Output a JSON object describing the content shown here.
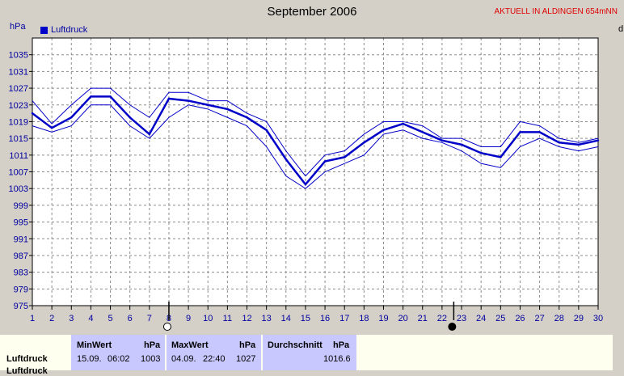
{
  "header": {
    "title": "September 2006",
    "badge": "AKTUELL IN ALDINGEN 654mNN",
    "unit_left": "hPa",
    "unit_right": "d"
  },
  "colors": {
    "plot_bg": "#ffffff",
    "line": "#0000c8",
    "frame_bg": "#d4d0c8",
    "table_header_bg": "#c8c8ff"
  },
  "chart_data": {
    "type": "line",
    "title": "September 2006",
    "ylabel": "hPa",
    "xlabel": "",
    "x": [
      1,
      2,
      3,
      4,
      5,
      6,
      7,
      8,
      9,
      10,
      11,
      12,
      13,
      14,
      15,
      16,
      17,
      18,
      19,
      20,
      21,
      22,
      23,
      24,
      25,
      26,
      27,
      28,
      29,
      30
    ],
    "ylim": [
      975,
      1039
    ],
    "yticks": [
      975,
      979,
      983,
      987,
      991,
      995,
      999,
      1003,
      1007,
      1011,
      1015,
      1019,
      1023,
      1027,
      1031,
      1035
    ],
    "grid": true,
    "legend": "top-left",
    "series": [
      {
        "name": "Luftdruck",
        "role": "mean",
        "values": [
          1021,
          1017.5,
          1020,
          1025,
          1025,
          1020,
          1016,
          1024.5,
          1024,
          1023,
          1022,
          1020,
          1017,
          1010,
          1004,
          1009.5,
          1010.5,
          1014,
          1017,
          1018.5,
          1016.5,
          1014.5,
          1013.5,
          1011.5,
          1010.5,
          1016.5,
          1016.5,
          1014,
          1013.5,
          1014.5
        ]
      },
      {
        "role": "max",
        "values": [
          1024,
          1018.5,
          1023,
          1027,
          1027,
          1023,
          1020,
          1026,
          1026,
          1024,
          1024,
          1021,
          1019,
          1012,
          1006,
          1011,
          1012,
          1016,
          1019,
          1019,
          1018,
          1015,
          1015,
          1013,
          1013,
          1019,
          1018,
          1015,
          1014,
          1015
        ]
      },
      {
        "role": "min",
        "values": [
          1018,
          1016.5,
          1018,
          1023,
          1023,
          1018,
          1015,
          1020,
          1023,
          1022,
          1020,
          1018,
          1013,
          1006,
          1003,
          1007,
          1009,
          1011,
          1016,
          1017,
          1015,
          1014,
          1012,
          1009,
          1008,
          1013,
          1015,
          1013,
          1012,
          1013
        ]
      }
    ],
    "markers": [
      {
        "day": 8,
        "symbol": "full-moon-icon"
      },
      {
        "day": 22.6,
        "symbol": "new-moon-icon"
      }
    ]
  },
  "table": {
    "row_label": "Luftdruck",
    "row_label_2": "Luftdruck",
    "min": {
      "header": "MinWert",
      "unit": "hPa",
      "date": "15.09.",
      "time": "06:02",
      "value": "1003"
    },
    "max": {
      "header": "MaxWert",
      "unit": "hPa",
      "date": "04.09.",
      "time": "22:40",
      "value": "1027"
    },
    "avg": {
      "header": "Durchschnitt",
      "unit": "hPa",
      "value": "1016.6"
    }
  }
}
